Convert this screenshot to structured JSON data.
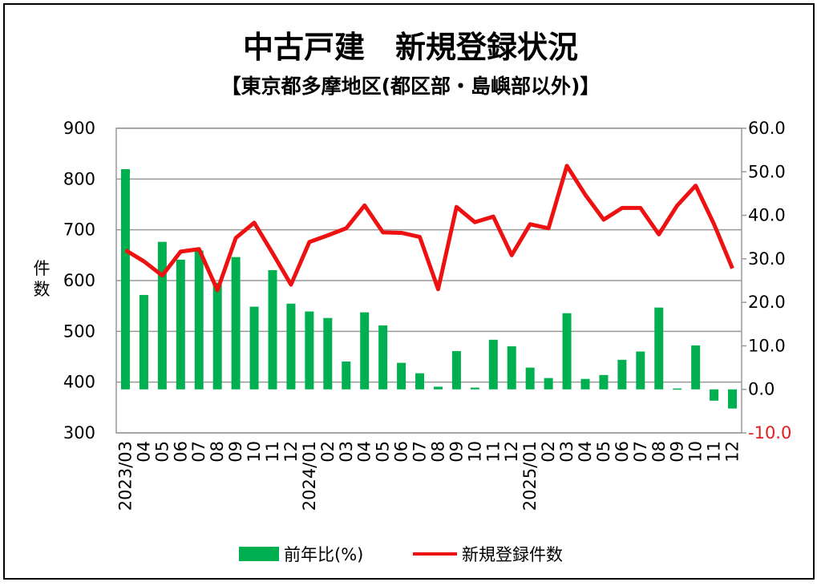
{
  "chart_data": {
    "type": "bar+line",
    "title": "中古戸建　新規登録状況",
    "subtitle": "【東京都多摩地区(都区部・島嶼部以外)】",
    "ylabel": "件数",
    "y_left": {
      "min": 300,
      "max": 900,
      "ticks": [
        "300",
        "400",
        "500",
        "600",
        "700",
        "800",
        "900"
      ]
    },
    "y_right": {
      "min": -10,
      "max": 60,
      "ticks": [
        "-10.0",
        "0.0",
        "10.0",
        "20.0",
        "30.0",
        "40.0",
        "50.0",
        "60.0"
      ],
      "negative_color": "#e02020"
    },
    "categories": [
      "2023/03",
      "04",
      "05",
      "06",
      "07",
      "08",
      "09",
      "10",
      "11",
      "12",
      "2024/01",
      "02",
      "03",
      "04",
      "05",
      "06",
      "07",
      "08",
      "09",
      "10",
      "11",
      "12",
      "2025/01",
      "02",
      "03",
      "04",
      "05",
      "06",
      "07",
      "08",
      "09",
      "10",
      "11",
      "12"
    ],
    "series": [
      {
        "name": "前年比(%)",
        "type": "bar",
        "axis": "right",
        "color": "#00b050",
        "values": [
          50.6,
          21.7,
          33.9,
          29.8,
          31.9,
          24.5,
          30.4,
          19.0,
          27.4,
          19.7,
          17.9,
          16.4,
          6.4,
          17.7,
          14.7,
          6.1,
          3.7,
          0.6,
          8.8,
          0.4,
          11.4,
          9.9,
          5.0,
          2.6,
          17.5,
          2.4,
          3.3,
          6.8,
          8.7,
          18.8,
          0.2,
          10.1,
          -2.6,
          -4.4
        ]
      },
      {
        "name": "新規登録件数",
        "type": "line",
        "axis": "left",
        "color": "#ee1111",
        "values": [
          660,
          638,
          610,
          657,
          662,
          581,
          684,
          714,
          654,
          592,
          676,
          689,
          703,
          748,
          695,
          694,
          686,
          583,
          745,
          715,
          726,
          650,
          711,
          703,
          826,
          769,
          720,
          743,
          743,
          691,
          748,
          787,
          711,
          624
        ]
      }
    ],
    "grid": true,
    "legend": "bottom"
  }
}
